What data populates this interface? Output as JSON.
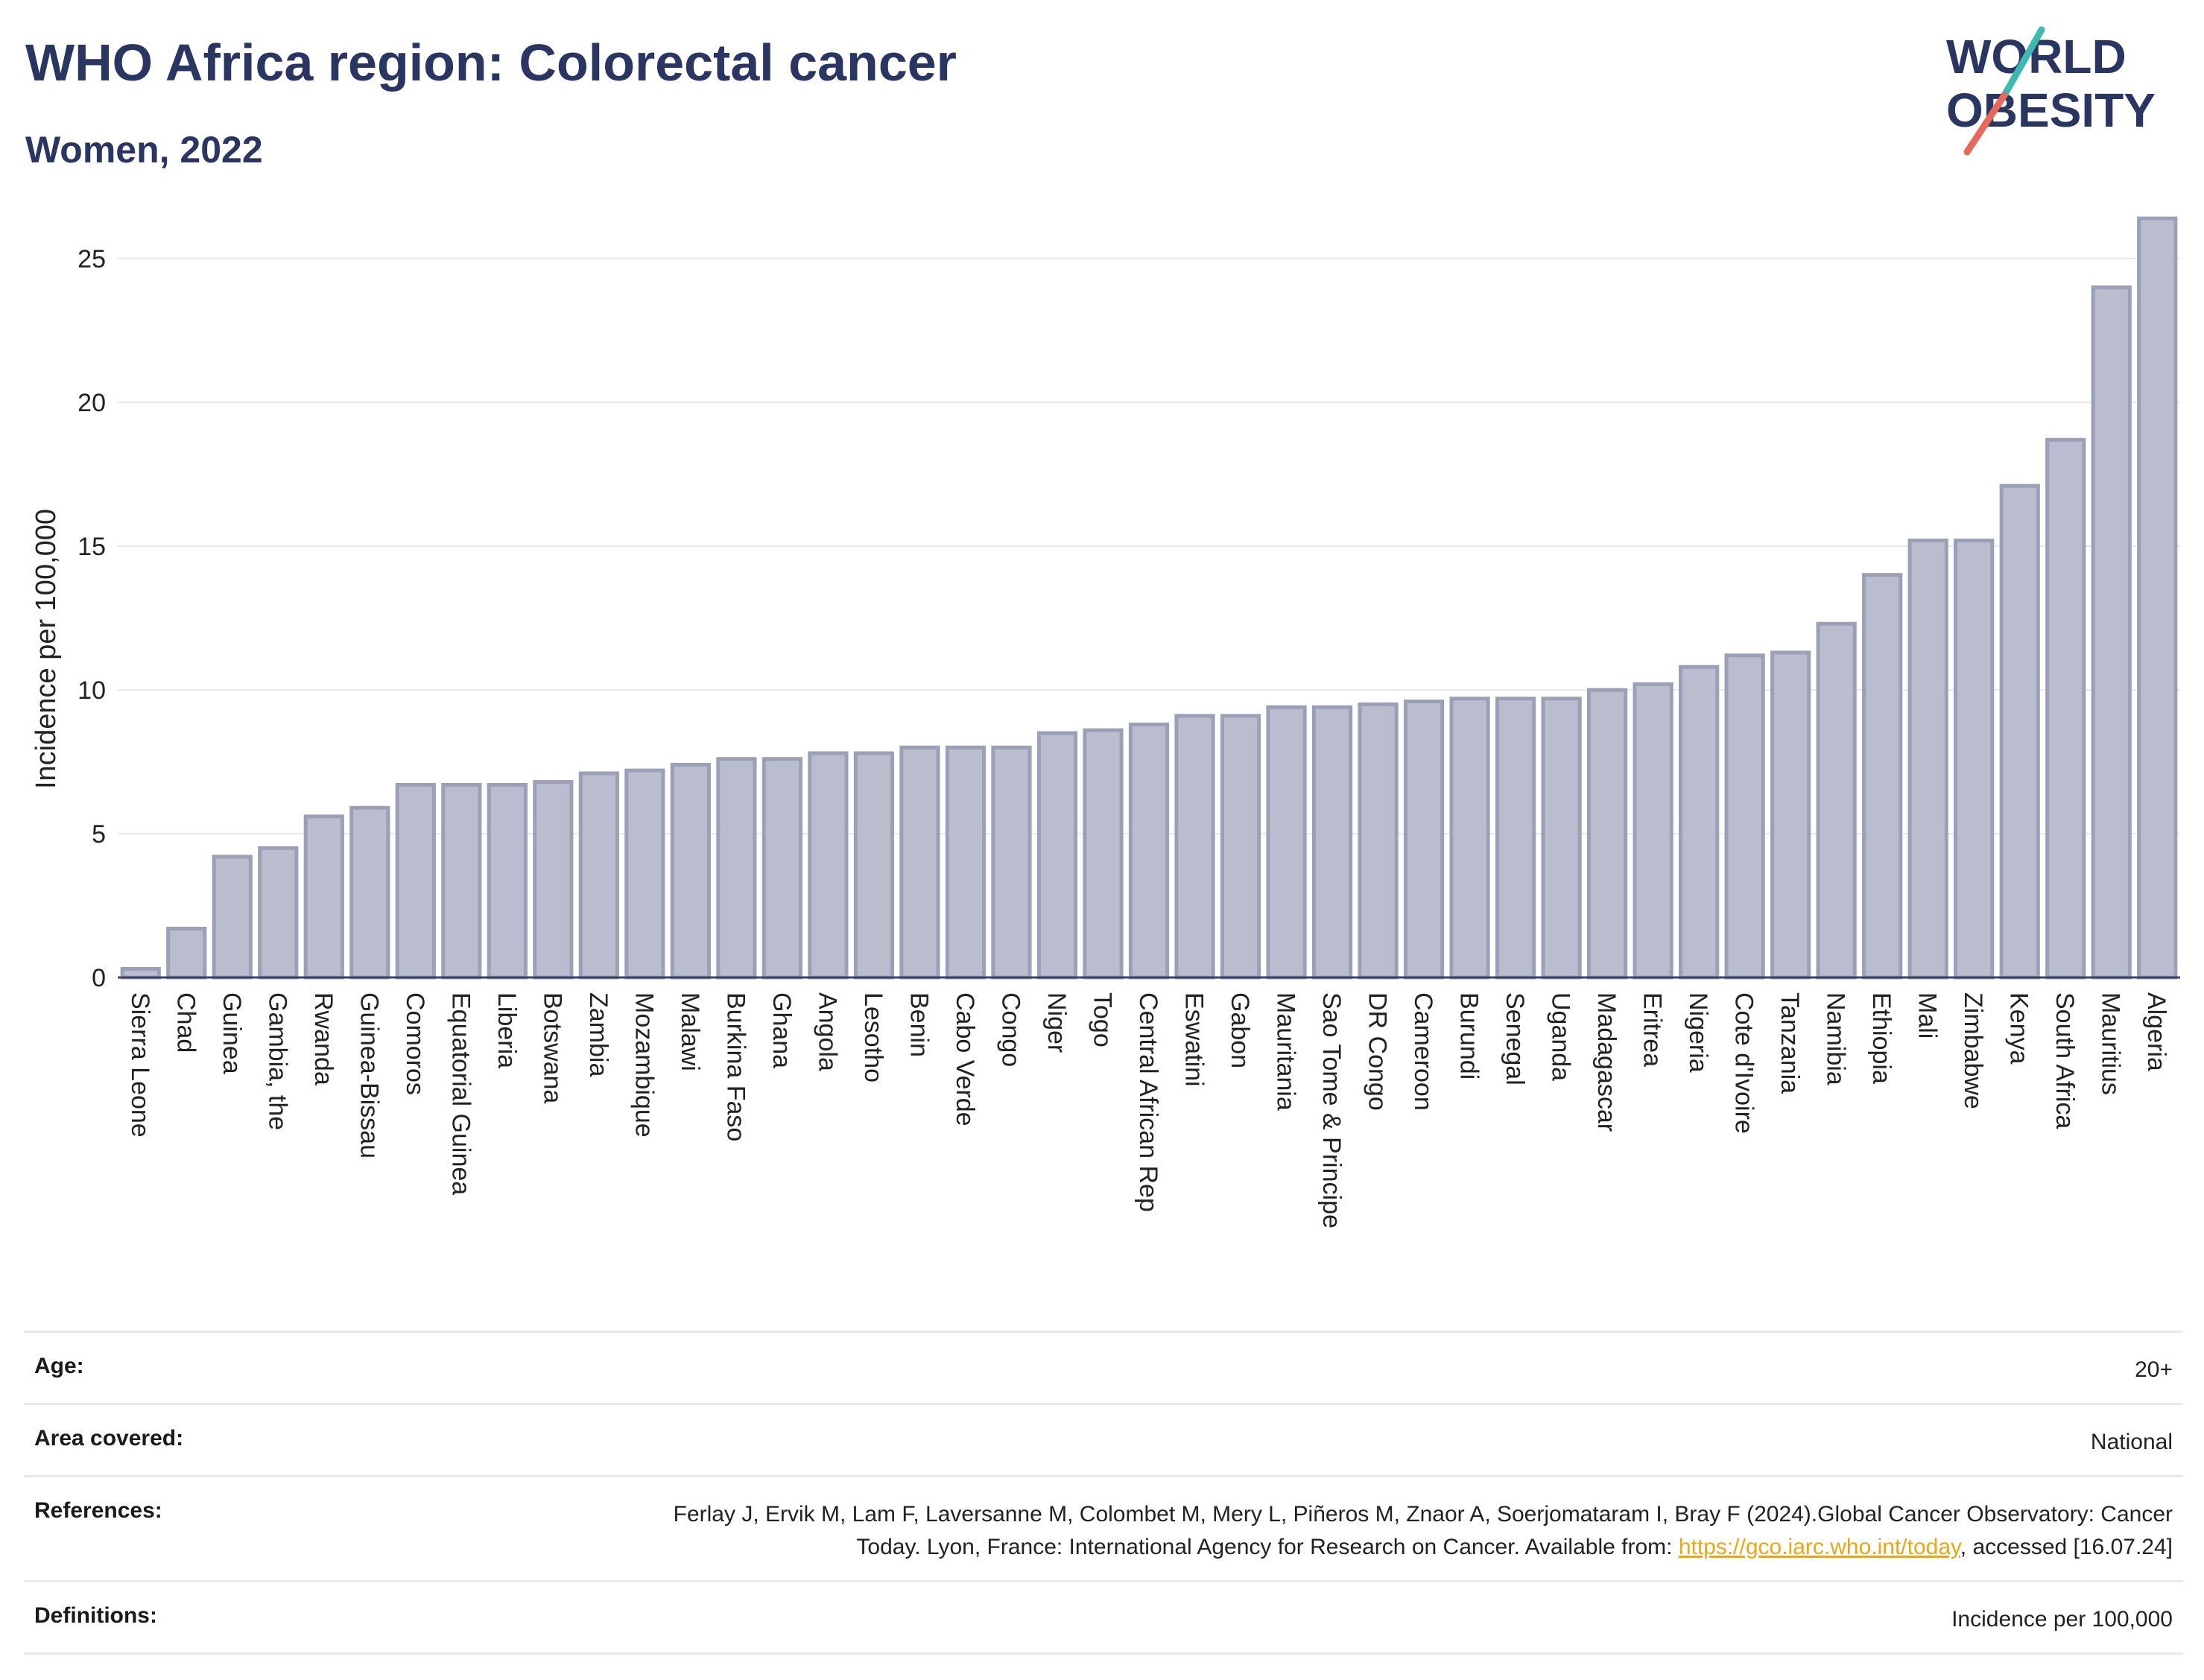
{
  "header": {
    "title": "WHO Africa region: Colorectal cancer",
    "subtitle": "Women, 2022",
    "logo": {
      "line1": "WORLD",
      "line2": "OBESITY"
    }
  },
  "colors": {
    "bar_fill": "#b9bdcd",
    "bar_stroke": "#9ba0b7",
    "title_text": "#2b3561",
    "logo_teal": "#3fb8b0",
    "logo_coral": "#e8685a",
    "link": "#e6a817"
  },
  "chart_data": {
    "type": "bar",
    "ylabel": "Incidence per 100,000",
    "ylim": [
      0,
      27
    ],
    "yticks": [
      0,
      5,
      10,
      15,
      20,
      25
    ],
    "grid": true,
    "categories": [
      "Sierra Leone",
      "Chad",
      "Guinea",
      "Gambia, the",
      "Rwanda",
      "Guinea-Bissau",
      "Comoros",
      "Equatorial Guinea",
      "Liberia",
      "Botswana",
      "Zambia",
      "Mozambique",
      "Malawi",
      "Burkina Faso",
      "Ghana",
      "Angola",
      "Lesotho",
      "Benin",
      "Cabo Verde",
      "Congo",
      "Niger",
      "Togo",
      "Central African Rep",
      "Eswatini",
      "Gabon",
      "Mauritania",
      "Sao Tome & Principe",
      "DR Congo",
      "Cameroon",
      "Burundi",
      "Senegal",
      "Uganda",
      "Madagascar",
      "Eritrea",
      "Nigeria",
      "Cote d'Ivoire",
      "Tanzania",
      "Namibia",
      "Ethiopia",
      "Mali",
      "Zimbabwe",
      "Kenya",
      "South Africa",
      "Mauritius",
      "Algeria"
    ],
    "values": [
      0.3,
      1.7,
      4.2,
      4.5,
      5.6,
      5.9,
      6.7,
      6.7,
      6.7,
      6.8,
      7.1,
      7.2,
      7.4,
      7.6,
      7.6,
      7.8,
      7.8,
      8.0,
      8.0,
      8.0,
      8.5,
      8.6,
      8.8,
      9.1,
      9.1,
      9.4,
      9.4,
      9.5,
      9.6,
      9.7,
      9.7,
      9.7,
      10.0,
      10.2,
      10.8,
      11.2,
      11.3,
      12.3,
      14.0,
      15.2,
      15.2,
      17.1,
      18.7,
      24.0,
      26.4
    ]
  },
  "info": {
    "rows": [
      {
        "label": "Age:",
        "value": "20+"
      },
      {
        "label": "Area covered:",
        "value": "National"
      },
      {
        "label": "References:",
        "value_pre": "Ferlay J, Ervik M, Lam F, Laversanne M, Colombet M, Mery L, Piñeros M, Znaor A, Soerjomataram I, Bray F (2024).Global Cancer Observatory: Cancer Today. Lyon, France: International Agency for Research on Cancer. Available from: ",
        "link": "https://gco.iarc.who.int/today",
        "value_post": ", accessed [16.07.24]"
      },
      {
        "label": "Definitions:",
        "value": "Incidence per 100,000"
      }
    ]
  }
}
